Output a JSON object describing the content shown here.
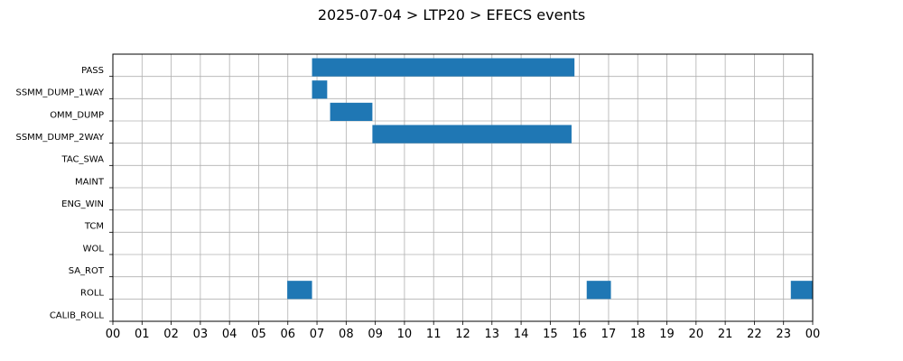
{
  "chart_data": {
    "type": "gantt",
    "title": "2025-07-04 > LTP20 > EFECS events",
    "xlabel": "",
    "ylabel": "",
    "grid": true,
    "x_ticks": [
      "00",
      "01",
      "02",
      "03",
      "04",
      "05",
      "06",
      "07",
      "08",
      "09",
      "10",
      "11",
      "12",
      "13",
      "14",
      "15",
      "16",
      "17",
      "18",
      "19",
      "20",
      "21",
      "22",
      "23",
      "00"
    ],
    "xlim_hours": [
      0,
      24
    ],
    "categories": [
      "PASS",
      "SSMM_DUMP_1WAY",
      "OMM_DUMP",
      "SSMM_DUMP_2WAY",
      "TAC_SWA",
      "MAINT",
      "ENG_WIN",
      "TCM",
      "WOL",
      "SA_ROT",
      "ROLL",
      "CALIB_ROLL"
    ],
    "bar_color": "#1f77b4",
    "events": [
      {
        "category": "PASS",
        "start_hour": 6.83,
        "end_hour": 15.83
      },
      {
        "category": "SSMM_DUMP_1WAY",
        "start_hour": 6.83,
        "end_hour": 7.35
      },
      {
        "category": "OMM_DUMP",
        "start_hour": 7.45,
        "end_hour": 8.9
      },
      {
        "category": "SSMM_DUMP_2WAY",
        "start_hour": 8.9,
        "end_hour": 15.73
      },
      {
        "category": "ROLL",
        "start_hour": 5.98,
        "end_hour": 6.83
      },
      {
        "category": "ROLL",
        "start_hour": 16.25,
        "end_hour": 17.08
      },
      {
        "category": "ROLL",
        "start_hour": 23.25,
        "end_hour": 24.0
      }
    ]
  }
}
